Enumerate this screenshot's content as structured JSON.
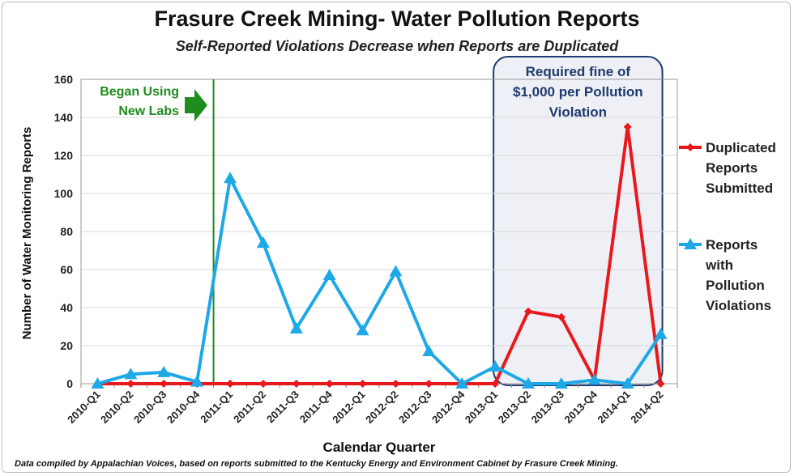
{
  "header": {
    "title": "Frasure Creek Mining- Water Pollution Reports",
    "subtitle": "Self-Reported Violations Decrease when Reports are Duplicated"
  },
  "footer": {
    "note": "Data compiled by Appalachian Voices, based on reports submitted to the Kentucky Energy and Environment Cabinet by Frasure Creek Mining."
  },
  "annotations": {
    "new_labs": [
      "Began Using",
      "New Labs"
    ],
    "fine": [
      "Required fine of",
      "$1,000 per Pollution",
      "Violation"
    ]
  },
  "colors": {
    "duplicated": "#e8191c",
    "violations": "#1fa8e6",
    "green_line": "#1f8c1f",
    "fine_box": "#1f3a6e",
    "fine_fill": "#eef0f6",
    "grid": "#d9d9d9"
  },
  "chart_data": {
    "type": "line",
    "title": "Frasure Creek Mining- Water Pollution Reports",
    "subtitle": "Self-Reported Violations Decrease when Reports are Duplicated",
    "xlabel": "Calendar Quarter",
    "ylabel": "Number of Water Monitoring Reports",
    "ylim": [
      0,
      160
    ],
    "yticks": [
      0,
      20,
      40,
      60,
      80,
      100,
      120,
      140,
      160
    ],
    "grid": true,
    "legend_position": "right",
    "categories": [
      "2010-Q1",
      "2010-Q2",
      "2010-Q3",
      "2010-Q4",
      "2011-Q1",
      "2011-Q2",
      "2011-Q3",
      "2011-Q4",
      "2012-Q1",
      "2012-Q2",
      "2012-Q3",
      "2012-Q4",
      "2013-Q1",
      "2013-Q2",
      "2013-Q3",
      "2013-Q4",
      "2014-Q1",
      "2014-Q2"
    ],
    "series": [
      {
        "name": "Duplicated Reports Submitted",
        "legend_lines": [
          "Duplicated",
          "Reports",
          "Submitted"
        ],
        "color": "#e8191c",
        "marker": "diamond",
        "values": [
          0,
          0,
          0,
          0,
          0,
          0,
          0,
          0,
          0,
          0,
          0,
          0,
          0,
          38,
          35,
          2,
          135,
          0
        ]
      },
      {
        "name": "Reports with Pollution Violations",
        "legend_lines": [
          "Reports",
          "with",
          "Pollution",
          "Violations"
        ],
        "color": "#1fa8e6",
        "marker": "triangle",
        "values": [
          0,
          5,
          6,
          1,
          108,
          74,
          29,
          57,
          28,
          59,
          17,
          0,
          9,
          0,
          0,
          2,
          0,
          26
        ]
      }
    ],
    "vertical_marker": {
      "after_category": "2010-Q4",
      "label": "Began Using New Labs"
    },
    "shaded_region": {
      "from_category": "2013-Q1",
      "to_category": "2014-Q2",
      "label": "Required fine of $1,000 per Pollution Violation"
    }
  }
}
